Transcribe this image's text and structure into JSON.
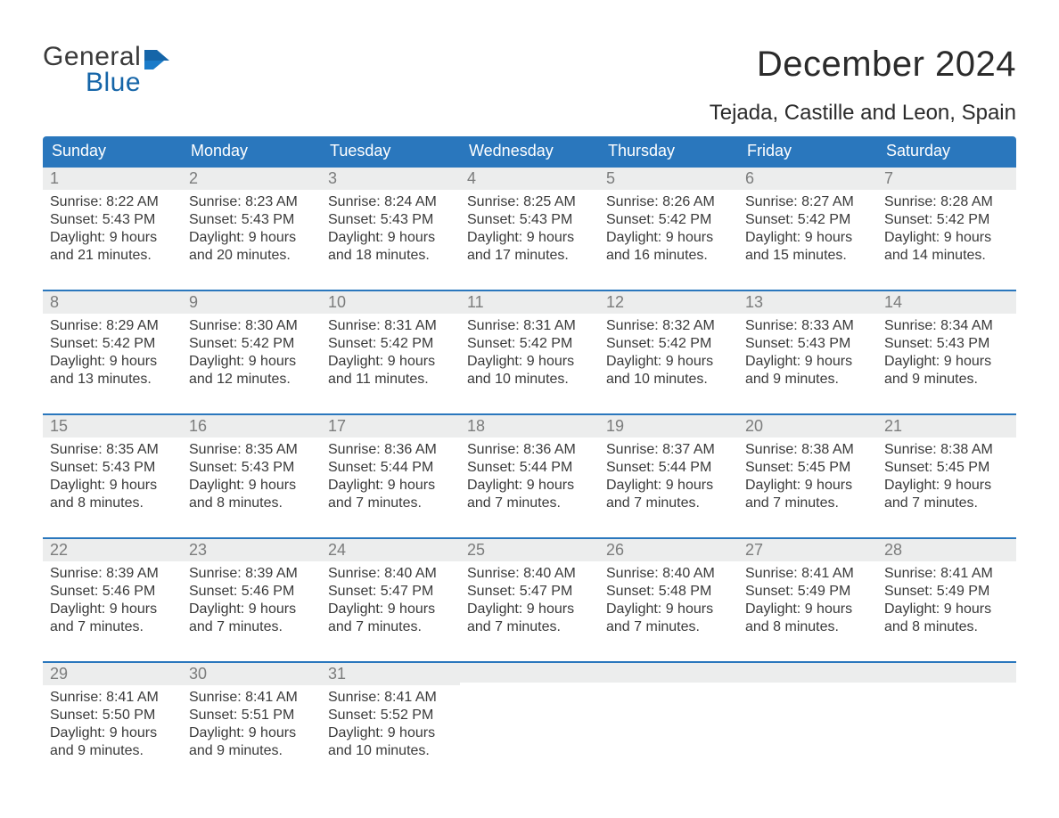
{
  "brand": {
    "line1": "General",
    "line2": "Blue",
    "color_line2": "#1565a8"
  },
  "title": {
    "month": "December 2024",
    "location": "Tejada, Castille and Leon, Spain"
  },
  "colors": {
    "header_bg": "#2a77bd",
    "header_text": "#ffffff",
    "week_border": "#2a77bd",
    "daynum_bg": "#eceded",
    "daynum_text": "#7b7c7c",
    "body_text": "#3a3a3a",
    "page_bg": "#ffffff"
  },
  "typography": {
    "month_fontsize": 40,
    "location_fontsize": 24,
    "header_fontsize": 18,
    "daynum_fontsize": 18,
    "cell_fontsize": 16
  },
  "day_names": [
    "Sunday",
    "Monday",
    "Tuesday",
    "Wednesday",
    "Thursday",
    "Friday",
    "Saturday"
  ],
  "weeks": [
    [
      {
        "n": "1",
        "sunrise": "Sunrise: 8:22 AM",
        "sunset": "Sunset: 5:43 PM",
        "day1": "Daylight: 9 hours",
        "day2": "and 21 minutes."
      },
      {
        "n": "2",
        "sunrise": "Sunrise: 8:23 AM",
        "sunset": "Sunset: 5:43 PM",
        "day1": "Daylight: 9 hours",
        "day2": "and 20 minutes."
      },
      {
        "n": "3",
        "sunrise": "Sunrise: 8:24 AM",
        "sunset": "Sunset: 5:43 PM",
        "day1": "Daylight: 9 hours",
        "day2": "and 18 minutes."
      },
      {
        "n": "4",
        "sunrise": "Sunrise: 8:25 AM",
        "sunset": "Sunset: 5:43 PM",
        "day1": "Daylight: 9 hours",
        "day2": "and 17 minutes."
      },
      {
        "n": "5",
        "sunrise": "Sunrise: 8:26 AM",
        "sunset": "Sunset: 5:42 PM",
        "day1": "Daylight: 9 hours",
        "day2": "and 16 minutes."
      },
      {
        "n": "6",
        "sunrise": "Sunrise: 8:27 AM",
        "sunset": "Sunset: 5:42 PM",
        "day1": "Daylight: 9 hours",
        "day2": "and 15 minutes."
      },
      {
        "n": "7",
        "sunrise": "Sunrise: 8:28 AM",
        "sunset": "Sunset: 5:42 PM",
        "day1": "Daylight: 9 hours",
        "day2": "and 14 minutes."
      }
    ],
    [
      {
        "n": "8",
        "sunrise": "Sunrise: 8:29 AM",
        "sunset": "Sunset: 5:42 PM",
        "day1": "Daylight: 9 hours",
        "day2": "and 13 minutes."
      },
      {
        "n": "9",
        "sunrise": "Sunrise: 8:30 AM",
        "sunset": "Sunset: 5:42 PM",
        "day1": "Daylight: 9 hours",
        "day2": "and 12 minutes."
      },
      {
        "n": "10",
        "sunrise": "Sunrise: 8:31 AM",
        "sunset": "Sunset: 5:42 PM",
        "day1": "Daylight: 9 hours",
        "day2": "and 11 minutes."
      },
      {
        "n": "11",
        "sunrise": "Sunrise: 8:31 AM",
        "sunset": "Sunset: 5:42 PM",
        "day1": "Daylight: 9 hours",
        "day2": "and 10 minutes."
      },
      {
        "n": "12",
        "sunrise": "Sunrise: 8:32 AM",
        "sunset": "Sunset: 5:42 PM",
        "day1": "Daylight: 9 hours",
        "day2": "and 10 minutes."
      },
      {
        "n": "13",
        "sunrise": "Sunrise: 8:33 AM",
        "sunset": "Sunset: 5:43 PM",
        "day1": "Daylight: 9 hours",
        "day2": "and 9 minutes."
      },
      {
        "n": "14",
        "sunrise": "Sunrise: 8:34 AM",
        "sunset": "Sunset: 5:43 PM",
        "day1": "Daylight: 9 hours",
        "day2": "and 9 minutes."
      }
    ],
    [
      {
        "n": "15",
        "sunrise": "Sunrise: 8:35 AM",
        "sunset": "Sunset: 5:43 PM",
        "day1": "Daylight: 9 hours",
        "day2": "and 8 minutes."
      },
      {
        "n": "16",
        "sunrise": "Sunrise: 8:35 AM",
        "sunset": "Sunset: 5:43 PM",
        "day1": "Daylight: 9 hours",
        "day2": "and 8 minutes."
      },
      {
        "n": "17",
        "sunrise": "Sunrise: 8:36 AM",
        "sunset": "Sunset: 5:44 PM",
        "day1": "Daylight: 9 hours",
        "day2": "and 7 minutes."
      },
      {
        "n": "18",
        "sunrise": "Sunrise: 8:36 AM",
        "sunset": "Sunset: 5:44 PM",
        "day1": "Daylight: 9 hours",
        "day2": "and 7 minutes."
      },
      {
        "n": "19",
        "sunrise": "Sunrise: 8:37 AM",
        "sunset": "Sunset: 5:44 PM",
        "day1": "Daylight: 9 hours",
        "day2": "and 7 minutes."
      },
      {
        "n": "20",
        "sunrise": "Sunrise: 8:38 AM",
        "sunset": "Sunset: 5:45 PM",
        "day1": "Daylight: 9 hours",
        "day2": "and 7 minutes."
      },
      {
        "n": "21",
        "sunrise": "Sunrise: 8:38 AM",
        "sunset": "Sunset: 5:45 PM",
        "day1": "Daylight: 9 hours",
        "day2": "and 7 minutes."
      }
    ],
    [
      {
        "n": "22",
        "sunrise": "Sunrise: 8:39 AM",
        "sunset": "Sunset: 5:46 PM",
        "day1": "Daylight: 9 hours",
        "day2": "and 7 minutes."
      },
      {
        "n": "23",
        "sunrise": "Sunrise: 8:39 AM",
        "sunset": "Sunset: 5:46 PM",
        "day1": "Daylight: 9 hours",
        "day2": "and 7 minutes."
      },
      {
        "n": "24",
        "sunrise": "Sunrise: 8:40 AM",
        "sunset": "Sunset: 5:47 PM",
        "day1": "Daylight: 9 hours",
        "day2": "and 7 minutes."
      },
      {
        "n": "25",
        "sunrise": "Sunrise: 8:40 AM",
        "sunset": "Sunset: 5:47 PM",
        "day1": "Daylight: 9 hours",
        "day2": "and 7 minutes."
      },
      {
        "n": "26",
        "sunrise": "Sunrise: 8:40 AM",
        "sunset": "Sunset: 5:48 PM",
        "day1": "Daylight: 9 hours",
        "day2": "and 7 minutes."
      },
      {
        "n": "27",
        "sunrise": "Sunrise: 8:41 AM",
        "sunset": "Sunset: 5:49 PM",
        "day1": "Daylight: 9 hours",
        "day2": "and 8 minutes."
      },
      {
        "n": "28",
        "sunrise": "Sunrise: 8:41 AM",
        "sunset": "Sunset: 5:49 PM",
        "day1": "Daylight: 9 hours",
        "day2": "and 8 minutes."
      }
    ],
    [
      {
        "n": "29",
        "sunrise": "Sunrise: 8:41 AM",
        "sunset": "Sunset: 5:50 PM",
        "day1": "Daylight: 9 hours",
        "day2": "and 9 minutes."
      },
      {
        "n": "30",
        "sunrise": "Sunrise: 8:41 AM",
        "sunset": "Sunset: 5:51 PM",
        "day1": "Daylight: 9 hours",
        "day2": "and 9 minutes."
      },
      {
        "n": "31",
        "sunrise": "Sunrise: 8:41 AM",
        "sunset": "Sunset: 5:52 PM",
        "day1": "Daylight: 9 hours",
        "day2": "and 10 minutes."
      },
      null,
      null,
      null,
      null
    ]
  ]
}
